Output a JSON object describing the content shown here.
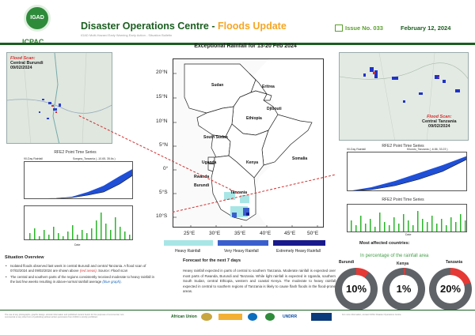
{
  "header": {
    "logo_text": "IGAD",
    "org": "ICPAC",
    "title_main": "Disaster Operations Centre",
    "title_sep": " - ",
    "title_highlight": "Floods Update",
    "subtitle": "IGAD Multi-Hazard Early Warning Early Action - Situation Bulletin",
    "issue": "Issue No. 033",
    "date": "February 12, 2024"
  },
  "map": {
    "title": "Exceptional Rainfall for 13-20 Feb 2024",
    "lat_labels": [
      "20°N",
      "15°N",
      "10°N",
      "5°N",
      "0°",
      "5°S",
      "10°S"
    ],
    "lon_labels": [
      "25°E",
      "30°E",
      "35°E",
      "40°E",
      "45°E",
      "50°E"
    ],
    "countries": [
      "Sudan",
      "Eritrea",
      "Djibouti",
      "Ethiopia",
      "South Sudan",
      "Somalia",
      "Uganda",
      "Kenya",
      "Rwanda",
      "Burundi",
      "Tanzania"
    ],
    "legend": [
      {
        "label": "Heavy Rainfall",
        "color": "#a8e6e6"
      },
      {
        "label": "Very Heavy Rainfall",
        "color": "#3a5fcd"
      },
      {
        "label": "Extremely Heavy Rainfall",
        "color": "#1a1a8c"
      }
    ]
  },
  "scans": {
    "burundi": {
      "label1": "Flood Scan:",
      "label2": "Central Burundi",
      "date": "09/02/2024"
    },
    "tanzania": {
      "label1": "Flood Scan:",
      "label2": "Central Tanzania",
      "date": "09/02/2024"
    }
  },
  "rfe_left": {
    "title": "RFE2 Point Time Series",
    "sub_left": "90-Day Rainfall",
    "sub_right": "Songea_Tanzania ( -10.65, 35.6s )",
    "y1": "Rainfall Accumulation (mm)",
    "y2": "Daily Rainfall (mm)",
    "xlab": "Date"
  },
  "rfe_right": {
    "title": "RFE2 Point Time Series",
    "sub_left": "90-Day Rainfall",
    "sub_right": "Kilundo_Tanzania ( -6.86, 33.23 )",
    "y1": "Rainfall Accumulation (mm)",
    "y2": "Daily Rainfall (mm)",
    "xlab": "Date"
  },
  "situation": {
    "title": "Situation Overview",
    "b1_a": "Isolated floods observed last week in central Burundi and central Tanzania. A flood scan of 07/02/2024 and 09/02/2024 are shown above ",
    "b1_red": "(red areas)",
    "b1_b": ". Source: ",
    "b1_src": "Flood scan",
    "b2_a": "The central and southern parts of the regions consistently received moderate to heavy rainfall in the last few weeks resulting in above-normal rainfall average ",
    "b2_blue": "(blue graph)",
    "b2_b": "."
  },
  "forecast": {
    "title": "Forecast for the next 7 days",
    "body": "Heavy rainfall expected in parts of central to southern Tanzania. Moderate rainfall is expected over most parts of Rwanda, Burundi and Tanzania. While light rainfall is expected in Uganda, southern South Sudan, central Ethiopia, western and coastal Kenya. The moderate to heavy rainfall expected in central to southern regions of Tanzania is likely to cause flash floods in the flood-prone areas."
  },
  "affected": {
    "title": "Most affected countries:",
    "subtitle": "In percentage of the rainfall area",
    "countries": [
      {
        "name": "Burundi",
        "pct": "10%",
        "value": 10
      },
      {
        "name": "Kenya",
        "pct": "1%",
        "value": 1
      },
      {
        "name": "Tanzania",
        "pct": "20%",
        "value": 20
      }
    ]
  },
  "footer": {
    "note": "The use of any photographs, graphic design, artwork information and published content herein for the purposes of commercial, non-commercial or any other form of publishing without written permission from ICPAC is strictly prohibited.",
    "right": "For more information, contact ICPAC Disaster Operations Centre.",
    "partners": [
      "African Union",
      "UNDRR"
    ]
  }
}
